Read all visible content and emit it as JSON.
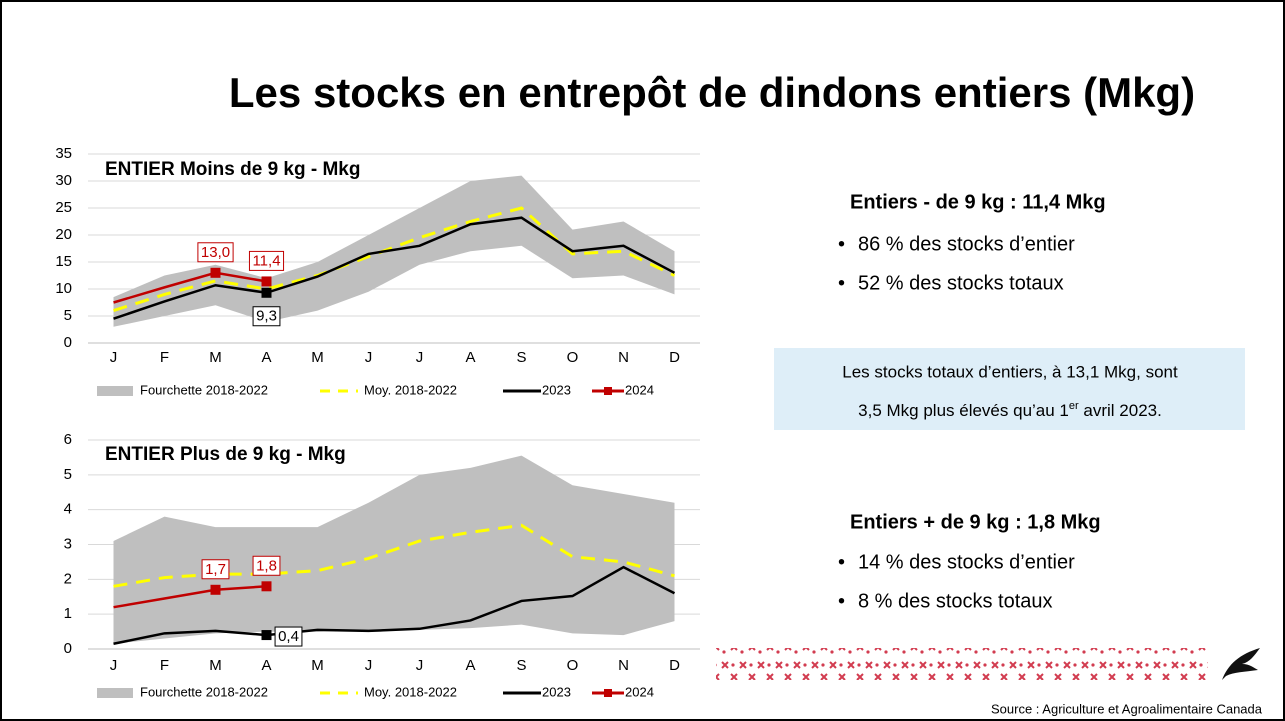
{
  "title": "Les stocks en entrepôt de dindons entiers (Mkg)",
  "chart_data": [
    {
      "type": "line",
      "title": "ENTIER Moins de 9 kg - Mkg",
      "categories": [
        "J",
        "F",
        "M",
        "A",
        "M",
        "J",
        "J",
        "A",
        "S",
        "O",
        "N",
        "D"
      ],
      "ylim": [
        0,
        35
      ],
      "yticks": [
        0,
        5,
        10,
        15,
        20,
        25,
        30,
        35
      ],
      "grid": true,
      "series": [
        {
          "name": "Fourchette 2018-2022",
          "type": "range",
          "color": "#bfbfbf",
          "low": [
            3,
            5,
            7,
            3.9,
            6,
            9.5,
            14.5,
            17,
            18,
            12,
            12.5,
            9
          ],
          "high": [
            8.5,
            12.5,
            14.5,
            12,
            15,
            20,
            25,
            30,
            31,
            21,
            22.5,
            17
          ]
        },
        {
          "name": "Moy. 2018-2022",
          "color": "#ffff00",
          "dashed": true,
          "values": [
            6,
            9,
            11.5,
            10,
            12.5,
            16,
            19.5,
            22.5,
            25,
            16.5,
            17,
            12.5
          ]
        },
        {
          "name": "2023",
          "color": "#000000",
          "marker": "square",
          "values": [
            4.5,
            7.7,
            10.7,
            9.3,
            12.3,
            16.5,
            18,
            22,
            23.2,
            17,
            18,
            13
          ],
          "value_labels": [
            null,
            null,
            null,
            "9,3",
            null,
            null,
            null,
            null,
            null,
            null,
            null,
            null
          ]
        },
        {
          "name": "2024",
          "color": "#c00000",
          "marker": "square",
          "values": [
            7.5,
            10.3,
            13.0,
            11.4,
            null,
            null,
            null,
            null,
            null,
            null,
            null,
            null
          ],
          "value_labels": [
            null,
            null,
            "13,0",
            "11,4",
            null,
            null,
            null,
            null,
            null,
            null,
            null,
            null
          ]
        }
      ]
    },
    {
      "type": "line",
      "title": "ENTIER Plus de 9 kg - Mkg",
      "categories": [
        "J",
        "F",
        "M",
        "A",
        "M",
        "J",
        "J",
        "A",
        "S",
        "O",
        "N",
        "D"
      ],
      "ylim": [
        0,
        6
      ],
      "yticks": [
        0,
        1,
        2,
        3,
        4,
        5,
        6
      ],
      "grid": true,
      "series": [
        {
          "name": "Fourchette 2018-2022",
          "type": "range",
          "color": "#bfbfbf",
          "low": [
            0.15,
            0.3,
            0.45,
            0.5,
            0.5,
            0.55,
            0.55,
            0.6,
            0.7,
            0.45,
            0.4,
            0.8
          ],
          "high": [
            3.1,
            3.8,
            3.5,
            3.5,
            3.5,
            4.2,
            5.0,
            5.2,
            5.55,
            4.7,
            4.45,
            4.2
          ]
        },
        {
          "name": "Moy. 2018-2022",
          "color": "#ffff00",
          "dashed": true,
          "values": [
            1.8,
            2.05,
            2.15,
            2.15,
            2.25,
            2.6,
            3.1,
            3.35,
            3.55,
            2.65,
            2.5,
            2.1
          ]
        },
        {
          "name": "2023",
          "color": "#000000",
          "marker": "square",
          "values": [
            0.15,
            0.45,
            0.52,
            0.4,
            0.55,
            0.52,
            0.58,
            0.82,
            1.38,
            1.52,
            2.35,
            1.6
          ],
          "value_labels": [
            null,
            null,
            null,
            "0,4",
            null,
            null,
            null,
            null,
            null,
            null,
            null,
            null
          ]
        },
        {
          "name": "2024",
          "color": "#c00000",
          "marker": "square",
          "values": [
            1.2,
            1.45,
            1.7,
            1.8,
            null,
            null,
            null,
            null,
            null,
            null,
            null,
            null
          ],
          "value_labels": [
            null,
            null,
            "1,7",
            "1,8",
            null,
            null,
            null,
            null,
            null,
            null,
            null,
            null
          ]
        }
      ]
    }
  ],
  "panels": [
    {
      "heading": "Entiers - de 9 kg : 11,4 Mkg",
      "bullets": [
        "86 % des stocks d’entier",
        "52 % des stocks totaux"
      ]
    },
    {
      "heading": "Entiers + de 9 kg : 1,8 Mkg",
      "bullets": [
        "14 % des stocks d’entier",
        "8 % des stocks totaux"
      ]
    }
  ],
  "callout": {
    "line1": "Les stocks totaux d’entiers, à 13,1 Mkg, sont",
    "line2_before": "3,5 Mkg plus élevés qu’au 1",
    "line2_sup": "er",
    "line2_after": " avril 2023."
  },
  "source": "Source : Agriculture et Agroalimentaire Canada"
}
